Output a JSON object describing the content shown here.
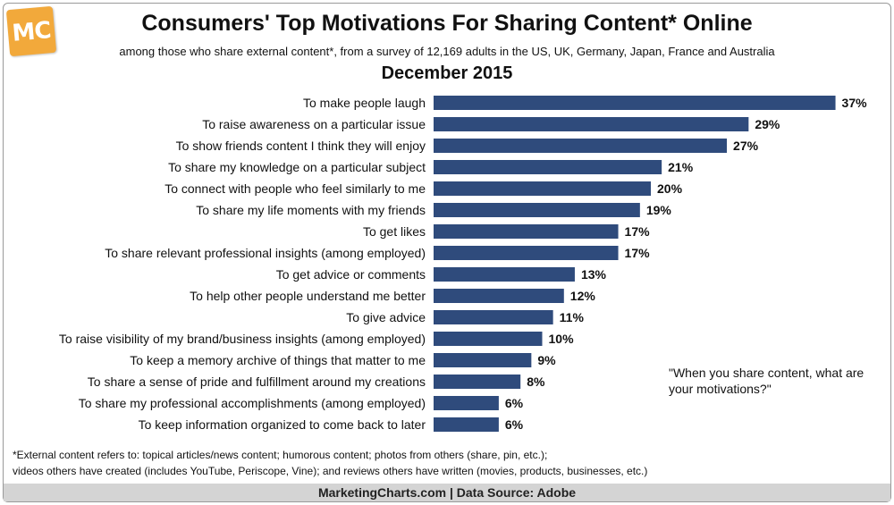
{
  "header": {
    "logo_text": "MC",
    "title": "Consumers' Top Motivations For Sharing Content* Online",
    "subtitle": "among those who share external content*, from a survey of 12,169 adults in the US, UK, Germany, Japan, France and Australia",
    "date": "December 2015"
  },
  "colors": {
    "bar": "#2f4b7c",
    "logo": "#f2a93b",
    "footer_band": "#d4d4d4"
  },
  "chart_data": {
    "type": "bar",
    "orientation": "horizontal",
    "categories": [
      "To make people laugh",
      "To raise awareness on a particular issue",
      "To show friends content I think they will enjoy",
      "To share my knowledge on a particular subject",
      "To connect with people who feel similarly to me",
      "To share my life moments with my friends",
      "To get likes",
      "To share relevant professional insights (among employed)",
      "To get advice or comments",
      "To help other people understand me better",
      "To give advice",
      "To raise visibility of my brand/business insights (among employed)",
      "To keep a memory archive of things that matter to me",
      "To share a sense of pride and fulfillment around my creations",
      "To share my professional accomplishments (among employed)",
      "To keep information organized to come back to later"
    ],
    "values": [
      37,
      29,
      27,
      21,
      20,
      19,
      17,
      17,
      13,
      12,
      11,
      10,
      9,
      8,
      6,
      6
    ],
    "value_labels": [
      "37%",
      "29%",
      "27%",
      "21%",
      "20%",
      "19%",
      "17%",
      "17%",
      "13%",
      "12%",
      "11%",
      "10%",
      "9%",
      "8%",
      "6%",
      "6%"
    ],
    "unit": "%",
    "title": "Consumers' Top Motivations For Sharing Content* Online",
    "xlabel": "",
    "ylabel": "",
    "grid": false
  },
  "annotation": {
    "quote": "\"When you share content, what are your motivations?\""
  },
  "footnote": {
    "line1": "*External content refers to: topical articles/news content; humorous content; photos from others (share, pin, etc.);",
    "line2": "videos others have created (includes YouTube, Periscope, Vine); and reviews others have written (movies, products, businesses, etc.)"
  },
  "footer": {
    "text": "MarketingCharts.com | Data Source: Adobe"
  }
}
